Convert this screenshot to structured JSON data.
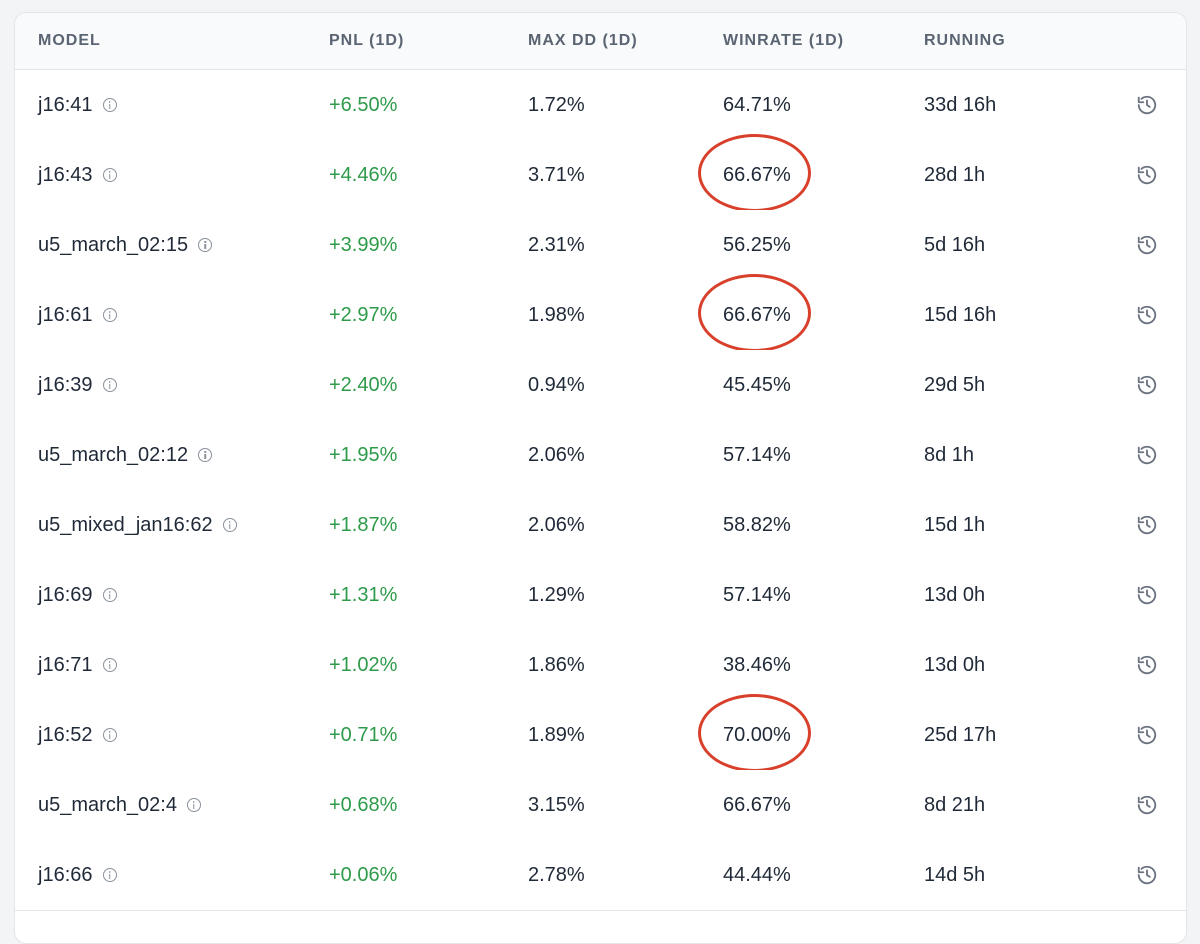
{
  "table": {
    "columns": [
      "MODEL",
      "PNL (1D)",
      "MAX DD (1D)",
      "WINRATE (1D)",
      "RUNNING"
    ],
    "rows": [
      {
        "model": "j16:41",
        "pnl": "+6.50%",
        "max_dd": "1.72%",
        "winrate": "64.71%",
        "running": "33d 16h",
        "highlighted": false
      },
      {
        "model": "j16:43",
        "pnl": "+4.46%",
        "max_dd": "3.71%",
        "winrate": "66.67%",
        "running": "28d 1h",
        "highlighted": true
      },
      {
        "model": "u5_march_02:15",
        "pnl": "+3.99%",
        "max_dd": "2.31%",
        "winrate": "56.25%",
        "running": "5d 16h",
        "highlighted": false
      },
      {
        "model": "j16:61",
        "pnl": "+2.97%",
        "max_dd": "1.98%",
        "winrate": "66.67%",
        "running": "15d 16h",
        "highlighted": true
      },
      {
        "model": "j16:39",
        "pnl": "+2.40%",
        "max_dd": "0.94%",
        "winrate": "45.45%",
        "running": "29d 5h",
        "highlighted": false
      },
      {
        "model": "u5_march_02:12",
        "pnl": "+1.95%",
        "max_dd": "2.06%",
        "winrate": "57.14%",
        "running": "8d 1h",
        "highlighted": false
      },
      {
        "model": "u5_mixed_jan16:62",
        "pnl": "+1.87%",
        "max_dd": "2.06%",
        "winrate": "58.82%",
        "running": "15d 1h",
        "highlighted": false
      },
      {
        "model": "j16:69",
        "pnl": "+1.31%",
        "max_dd": "1.29%",
        "winrate": "57.14%",
        "running": "13d 0h",
        "highlighted": false
      },
      {
        "model": "j16:71",
        "pnl": "+1.02%",
        "max_dd": "1.86%",
        "winrate": "38.46%",
        "running": "13d 0h",
        "highlighted": false
      },
      {
        "model": "j16:52",
        "pnl": "+0.71%",
        "max_dd": "1.89%",
        "winrate": "70.00%",
        "running": "25d 17h",
        "highlighted": true
      },
      {
        "model": "u5_march_02:4",
        "pnl": "+0.68%",
        "max_dd": "3.15%",
        "winrate": "66.67%",
        "running": "8d 21h",
        "highlighted": false
      },
      {
        "model": "j16:66",
        "pnl": "+0.06%",
        "max_dd": "2.78%",
        "winrate": "44.44%",
        "running": "14d 5h",
        "highlighted": false
      }
    ]
  },
  "icons": {
    "info": "info-icon",
    "history": "history-icon"
  },
  "colors": {
    "positive": "#2e9b4a",
    "highlight_circle": "#d9402b"
  }
}
